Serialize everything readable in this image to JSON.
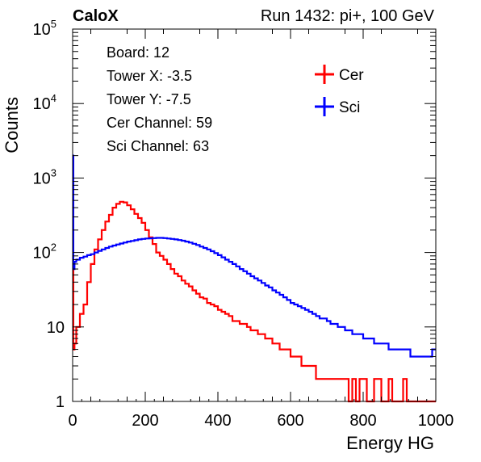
{
  "header": {
    "experiment": "CaloX",
    "run_info": "Run 1432: pi+, 100 GeV"
  },
  "info_box": {
    "lines": [
      "Board: 12",
      "Tower X: -3.5",
      "Tower Y: -7.5",
      "Cer Channel: 59",
      "Sci Channel: 63"
    ]
  },
  "chart_data": {
    "type": "line",
    "xlabel": "Energy HG",
    "ylabel": "Counts",
    "xlim": [
      0,
      1000
    ],
    "ylim": [
      1,
      100000
    ],
    "yscale": "log",
    "x_ticks": [
      "0",
      "200",
      "400",
      "600",
      "800",
      "1000"
    ],
    "y_ticks": [
      {
        "base": "1",
        "exp": ""
      },
      {
        "base": "10",
        "exp": ""
      },
      {
        "base": "10",
        "exp": "2"
      },
      {
        "base": "10",
        "exp": "3"
      },
      {
        "base": "10",
        "exp": "4"
      },
      {
        "base": "10",
        "exp": "5"
      }
    ],
    "legend_position": "top-right",
    "series": [
      {
        "name": "Cer",
        "color": "#ff0000",
        "points": [
          [
            0,
            2000
          ],
          [
            2,
            5
          ],
          [
            5,
            6
          ],
          [
            10,
            10
          ],
          [
            20,
            15
          ],
          [
            30,
            20
          ],
          [
            40,
            40
          ],
          [
            50,
            70
          ],
          [
            60,
            110
          ],
          [
            70,
            150
          ],
          [
            80,
            200
          ],
          [
            90,
            260
          ],
          [
            100,
            320
          ],
          [
            110,
            400
          ],
          [
            120,
            450
          ],
          [
            130,
            480
          ],
          [
            140,
            470
          ],
          [
            150,
            430
          ],
          [
            160,
            380
          ],
          [
            170,
            330
          ],
          [
            180,
            290
          ],
          [
            190,
            250
          ],
          [
            200,
            200
          ],
          [
            210,
            160
          ],
          [
            220,
            130
          ],
          [
            230,
            100
          ],
          [
            240,
            90
          ],
          [
            250,
            80
          ],
          [
            260,
            70
          ],
          [
            270,
            60
          ],
          [
            280,
            52
          ],
          [
            290,
            48
          ],
          [
            300,
            42
          ],
          [
            310,
            38
          ],
          [
            320,
            35
          ],
          [
            330,
            31
          ],
          [
            340,
            28
          ],
          [
            350,
            25
          ],
          [
            360,
            24
          ],
          [
            370,
            21
          ],
          [
            380,
            20
          ],
          [
            390,
            19
          ],
          [
            400,
            17
          ],
          [
            410,
            16
          ],
          [
            420,
            15
          ],
          [
            430,
            14
          ],
          [
            440,
            12
          ],
          [
            450,
            12
          ],
          [
            460,
            11
          ],
          [
            470,
            11
          ],
          [
            480,
            10
          ],
          [
            490,
            9
          ],
          [
            500,
            9
          ],
          [
            510,
            8
          ],
          [
            520,
            8
          ],
          [
            530,
            7
          ],
          [
            540,
            7
          ],
          [
            550,
            6
          ],
          [
            560,
            6
          ],
          [
            570,
            5
          ],
          [
            580,
            5
          ],
          [
            590,
            5
          ],
          [
            600,
            4
          ],
          [
            610,
            4
          ],
          [
            620,
            4
          ],
          [
            630,
            3
          ],
          [
            640,
            3
          ],
          [
            650,
            3
          ],
          [
            660,
            3
          ],
          [
            670,
            2
          ],
          [
            680,
            2
          ],
          [
            690,
            2
          ],
          [
            700,
            2
          ],
          [
            710,
            2
          ],
          [
            720,
            2
          ],
          [
            730,
            2
          ],
          [
            740,
            2
          ],
          [
            750,
            2
          ],
          [
            760,
            1
          ],
          [
            770,
            2
          ],
          [
            780,
            1
          ],
          [
            790,
            2
          ],
          [
            800,
            2
          ],
          [
            810,
            1
          ],
          [
            820,
            1
          ],
          [
            830,
            2
          ],
          [
            840,
            2
          ],
          [
            850,
            1
          ],
          [
            860,
            1
          ],
          [
            870,
            2
          ],
          [
            880,
            1
          ],
          [
            890,
            1
          ],
          [
            900,
            1
          ],
          [
            910,
            2
          ],
          [
            920,
            1
          ],
          [
            930,
            1
          ],
          [
            940,
            1
          ],
          [
            950,
            1
          ],
          [
            960,
            1
          ],
          [
            970,
            1
          ],
          [
            980,
            1
          ],
          [
            990,
            1
          ],
          [
            1000,
            1
          ]
        ]
      },
      {
        "name": "Sci",
        "color": "#0000ff",
        "points": [
          [
            0,
            2000
          ],
          [
            2,
            60
          ],
          [
            5,
            75
          ],
          [
            10,
            80
          ],
          [
            20,
            85
          ],
          [
            30,
            88
          ],
          [
            40,
            92
          ],
          [
            50,
            95
          ],
          [
            60,
            100
          ],
          [
            70,
            105
          ],
          [
            80,
            110
          ],
          [
            90,
            115
          ],
          [
            100,
            120
          ],
          [
            110,
            124
          ],
          [
            120,
            128
          ],
          [
            130,
            132
          ],
          [
            140,
            136
          ],
          [
            150,
            140
          ],
          [
            160,
            143
          ],
          [
            170,
            146
          ],
          [
            180,
            150
          ],
          [
            190,
            152
          ],
          [
            200,
            154
          ],
          [
            210,
            155
          ],
          [
            220,
            156
          ],
          [
            230,
            157
          ],
          [
            240,
            157
          ],
          [
            250,
            156
          ],
          [
            260,
            154
          ],
          [
            270,
            152
          ],
          [
            280,
            150
          ],
          [
            290,
            147
          ],
          [
            300,
            144
          ],
          [
            310,
            140
          ],
          [
            320,
            136
          ],
          [
            330,
            131
          ],
          [
            340,
            126
          ],
          [
            350,
            120
          ],
          [
            360,
            115
          ],
          [
            370,
            110
          ],
          [
            380,
            104
          ],
          [
            390,
            98
          ],
          [
            400,
            92
          ],
          [
            410,
            86
          ],
          [
            420,
            80
          ],
          [
            430,
            75
          ],
          [
            440,
            70
          ],
          [
            450,
            65
          ],
          [
            460,
            60
          ],
          [
            470,
            56
          ],
          [
            480,
            52
          ],
          [
            490,
            48
          ],
          [
            500,
            45
          ],
          [
            510,
            42
          ],
          [
            520,
            39
          ],
          [
            530,
            36
          ],
          [
            540,
            34
          ],
          [
            550,
            31
          ],
          [
            560,
            29
          ],
          [
            570,
            27
          ],
          [
            580,
            25
          ],
          [
            590,
            23
          ],
          [
            600,
            21
          ],
          [
            610,
            20
          ],
          [
            620,
            19
          ],
          [
            630,
            18
          ],
          [
            640,
            17
          ],
          [
            650,
            16
          ],
          [
            660,
            15
          ],
          [
            670,
            14
          ],
          [
            680,
            13
          ],
          [
            690,
            13
          ],
          [
            700,
            12
          ],
          [
            710,
            11
          ],
          [
            720,
            11
          ],
          [
            730,
            10
          ],
          [
            740,
            10
          ],
          [
            750,
            9
          ],
          [
            760,
            9
          ],
          [
            770,
            8
          ],
          [
            780,
            8
          ],
          [
            790,
            8
          ],
          [
            800,
            7
          ],
          [
            810,
            7
          ],
          [
            820,
            7
          ],
          [
            830,
            6
          ],
          [
            840,
            6
          ],
          [
            850,
            6
          ],
          [
            860,
            6
          ],
          [
            870,
            5
          ],
          [
            880,
            5
          ],
          [
            890,
            5
          ],
          [
            900,
            5
          ],
          [
            910,
            5
          ],
          [
            920,
            5
          ],
          [
            930,
            4
          ],
          [
            940,
            4
          ],
          [
            950,
            4
          ],
          [
            960,
            4
          ],
          [
            970,
            4
          ],
          [
            980,
            4
          ],
          [
            990,
            5
          ],
          [
            1000,
            5
          ]
        ]
      }
    ]
  }
}
